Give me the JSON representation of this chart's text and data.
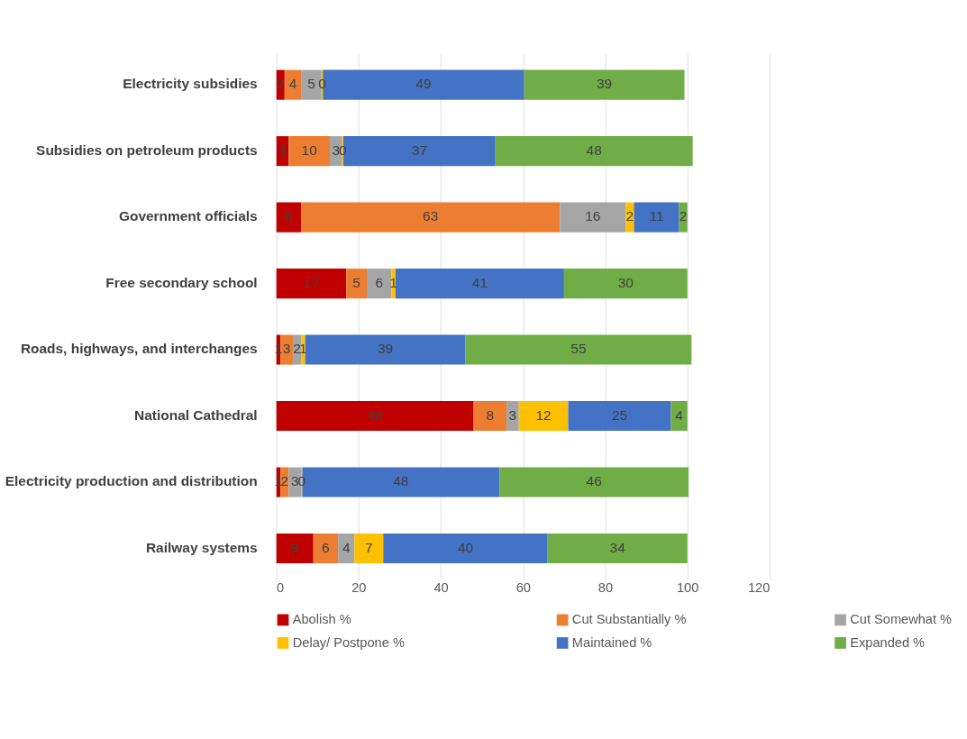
{
  "chart_data": {
    "type": "bar",
    "orientation": "horizontal",
    "stacked": true,
    "grid": "x",
    "legend": "bottom",
    "categories": [
      "Electricity subsidies",
      "Subsidies on petroleum products",
      "Government officials",
      "Free secondary school",
      "Roads, highways, and interchanges",
      "National Cathedral",
      "Electricity production and distribution",
      "Railway systems"
    ],
    "series": [
      {
        "name": "Abolish %",
        "color": "#c00000",
        "values": [
          2,
          3,
          6,
          17,
          1,
          48,
          1,
          9
        ],
        "value_labels": [
          "2",
          "3",
          "6",
          "17",
          "1",
          "48",
          "1",
          "9"
        ]
      },
      {
        "name": "Cut Substantially %",
        "color": "#ed7d31",
        "values": [
          4,
          10,
          63,
          5,
          3,
          8,
          2,
          6
        ],
        "value_labels": [
          "4",
          "10",
          "63",
          "5",
          "3",
          "8",
          "2",
          "6"
        ]
      },
      {
        "name": "Cut Somewhat    %",
        "color": "#a5a5a5",
        "values": [
          5,
          3,
          16,
          6,
          2,
          3,
          3,
          4
        ],
        "value_labels": [
          "5",
          "3",
          "16",
          "6",
          "2",
          "3",
          "3",
          "4"
        ]
      },
      {
        "name": "Delay/ Postpone  %",
        "color": "#ffc000",
        "values": [
          0.3,
          0.3,
          2,
          1,
          1,
          12,
          0.3,
          7
        ],
        "value_labels": [
          "0",
          "0",
          "2",
          "1",
          "1",
          "12",
          "0",
          "7"
        ]
      },
      {
        "name": "Maintained %",
        "color": "#4472c4",
        "values": [
          49,
          37,
          11,
          41,
          39,
          25,
          48,
          40
        ],
        "value_labels": [
          "49",
          "37",
          "11",
          "41",
          "39",
          "25",
          "48",
          "40"
        ]
      },
      {
        "name": "Expanded %",
        "color": "#70ad47",
        "values": [
          39,
          48,
          2,
          30,
          55,
          4,
          46,
          34
        ],
        "value_labels": [
          "39",
          "48",
          "2",
          "30",
          "55",
          "4",
          "46",
          "34"
        ]
      }
    ],
    "xlim": [
      0,
      120
    ],
    "xticks": [
      0,
      20,
      40,
      60,
      80,
      100,
      120
    ]
  }
}
